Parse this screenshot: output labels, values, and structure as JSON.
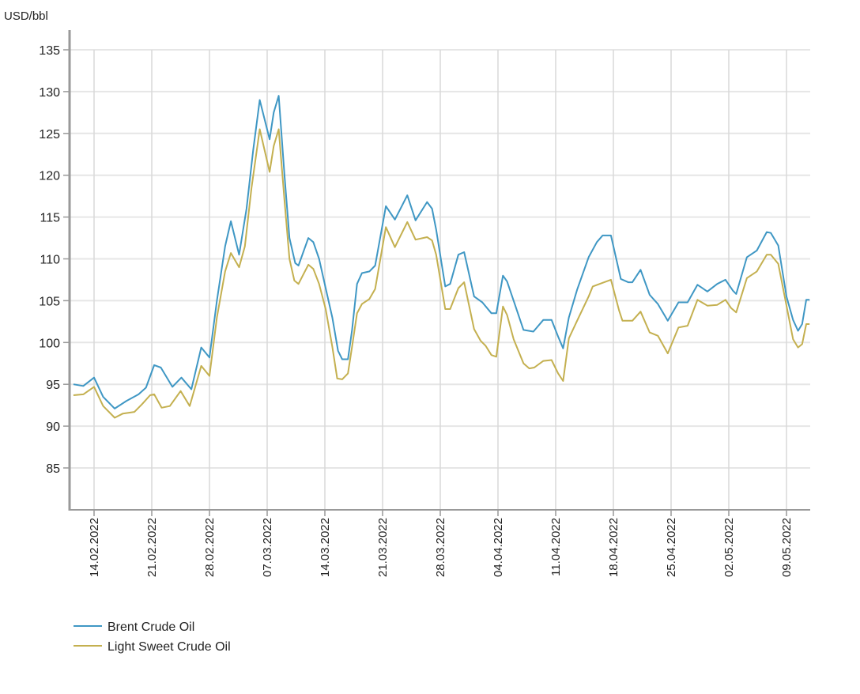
{
  "chart_data": {
    "type": "line",
    "ylabel": "USD/bbl",
    "ylim": [
      80,
      135
    ],
    "yticks": [
      85,
      90,
      95,
      100,
      105,
      110,
      115,
      120,
      125,
      130,
      135
    ],
    "x_unit": "days since 14.02.2022",
    "xlim": [
      -3,
      87
    ],
    "xticks": [
      {
        "day": 0,
        "label": "14.02.2022"
      },
      {
        "day": 7,
        "label": "21.02.2022"
      },
      {
        "day": 14,
        "label": "28.02.2022"
      },
      {
        "day": 21,
        "label": "07.03.2022"
      },
      {
        "day": 28,
        "label": "14.03.2022"
      },
      {
        "day": 35,
        "label": "21.03.2022"
      },
      {
        "day": 42,
        "label": "28.03.2022"
      },
      {
        "day": 49,
        "label": "04.04.2022"
      },
      {
        "day": 56,
        "label": "11.04.2022"
      },
      {
        "day": 63,
        "label": "18.04.2022"
      },
      {
        "day": 70,
        "label": "25.04.2022"
      },
      {
        "day": 77,
        "label": "02.05.2022"
      },
      {
        "day": 84,
        "label": "09.05.2022"
      }
    ],
    "grid": true,
    "legend_position": "bottom-left",
    "series": [
      {
        "name": "Brent Crude Oil",
        "color": "#3f97c4",
        "points": [
          [
            -2.5,
            95.0
          ],
          [
            -1.3,
            94.8
          ],
          [
            0,
            95.8
          ],
          [
            1.1,
            93.5
          ],
          [
            2.5,
            92.1
          ],
          [
            3.9,
            93.0
          ],
          [
            5.4,
            93.8
          ],
          [
            6.3,
            94.6
          ],
          [
            7.3,
            97.3
          ],
          [
            8.1,
            97.0
          ],
          [
            9.5,
            94.7
          ],
          [
            10.6,
            95.8
          ],
          [
            11.8,
            94.4
          ],
          [
            13.0,
            99.4
          ],
          [
            14.0,
            98.2
          ],
          [
            14.9,
            105
          ],
          [
            15.9,
            111.5
          ],
          [
            16.6,
            114.5
          ],
          [
            17.6,
            110.5
          ],
          [
            18.5,
            116
          ],
          [
            19.3,
            123
          ],
          [
            20.1,
            129
          ],
          [
            21.3,
            124.3
          ],
          [
            21.8,
            127.5
          ],
          [
            22.4,
            129.5
          ],
          [
            23.1,
            120
          ],
          [
            23.7,
            112.5
          ],
          [
            24.4,
            109.5
          ],
          [
            24.8,
            109.2
          ],
          [
            26.0,
            112.5
          ],
          [
            26.6,
            112
          ],
          [
            27.3,
            110
          ],
          [
            28.1,
            106.5
          ],
          [
            28.9,
            103
          ],
          [
            29.6,
            99
          ],
          [
            30.1,
            98
          ],
          [
            30.8,
            98
          ],
          [
            31.3,
            101.5
          ],
          [
            31.9,
            107
          ],
          [
            32.5,
            108.3
          ],
          [
            33.4,
            108.5
          ],
          [
            34.1,
            109.2
          ],
          [
            35.4,
            116.3
          ],
          [
            36.5,
            114.7
          ],
          [
            38.0,
            117.6
          ],
          [
            39.0,
            114.6
          ],
          [
            40.4,
            116.8
          ],
          [
            41.0,
            116
          ],
          [
            41.5,
            113.5
          ],
          [
            42.6,
            106.7
          ],
          [
            43.2,
            107
          ],
          [
            44.2,
            110.5
          ],
          [
            44.9,
            110.8
          ],
          [
            46.1,
            105.5
          ],
          [
            47.1,
            104.8
          ],
          [
            48.2,
            103.5
          ],
          [
            48.8,
            103.5
          ],
          [
            49.6,
            108
          ],
          [
            50.1,
            107.3
          ],
          [
            50.9,
            105
          ],
          [
            52.1,
            101.5
          ],
          [
            53.3,
            101.3
          ],
          [
            54.5,
            102.7
          ],
          [
            55.5,
            102.7
          ],
          [
            56.3,
            100.7
          ],
          [
            56.9,
            99.3
          ],
          [
            57.6,
            103
          ],
          [
            58.6,
            106.3
          ],
          [
            60.0,
            110.2
          ],
          [
            61.0,
            112
          ],
          [
            61.7,
            112.8
          ],
          [
            62.7,
            112.8
          ],
          [
            63.9,
            107.6
          ],
          [
            64.8,
            107.2
          ],
          [
            65.3,
            107.2
          ],
          [
            66.3,
            108.7
          ],
          [
            67.4,
            105.7
          ],
          [
            68.4,
            104.6
          ],
          [
            69.6,
            102.6
          ],
          [
            70.9,
            104.8
          ],
          [
            72.0,
            104.8
          ],
          [
            73.2,
            106.9
          ],
          [
            74.4,
            106.1
          ],
          [
            75.6,
            107
          ],
          [
            76.6,
            107.5
          ],
          [
            77.5,
            106.2
          ],
          [
            77.9,
            105.8
          ],
          [
            79.2,
            110.2
          ],
          [
            80.4,
            111
          ],
          [
            81.6,
            113.2
          ],
          [
            82.1,
            113.1
          ],
          [
            83.0,
            111.6
          ],
          [
            84.0,
            105.5
          ],
          [
            84.8,
            102.7
          ],
          [
            85.4,
            101.4
          ],
          [
            85.9,
            102.2
          ],
          [
            86.4,
            105.1
          ],
          [
            86.8,
            105.1
          ]
        ]
      },
      {
        "name": "Light Sweet Crude Oil",
        "color": "#c4b050",
        "points": [
          [
            -2.5,
            93.7
          ],
          [
            -1.3,
            93.8
          ],
          [
            0,
            94.7
          ],
          [
            1.1,
            92.4
          ],
          [
            2.5,
            91.0
          ],
          [
            3.5,
            91.5
          ],
          [
            4.9,
            91.7
          ],
          [
            5.8,
            92.6
          ],
          [
            6.8,
            93.7
          ],
          [
            7.3,
            93.8
          ],
          [
            8.2,
            92.2
          ],
          [
            9.2,
            92.4
          ],
          [
            10.5,
            94.2
          ],
          [
            11.6,
            92.4
          ],
          [
            13.0,
            97.2
          ],
          [
            14.0,
            96.0
          ],
          [
            14.9,
            103
          ],
          [
            15.9,
            108.5
          ],
          [
            16.6,
            110.7
          ],
          [
            17.6,
            109
          ],
          [
            18.3,
            111.5
          ],
          [
            19.1,
            118.5
          ],
          [
            20.1,
            125.5
          ],
          [
            21.3,
            120.4
          ],
          [
            21.8,
            123.5
          ],
          [
            22.4,
            125.5
          ],
          [
            23.1,
            117
          ],
          [
            23.7,
            110
          ],
          [
            24.3,
            107.4
          ],
          [
            24.8,
            107
          ],
          [
            26.0,
            109.3
          ],
          [
            26.6,
            108.8
          ],
          [
            27.3,
            107
          ],
          [
            28.1,
            104
          ],
          [
            28.9,
            99.5
          ],
          [
            29.5,
            95.7
          ],
          [
            30.1,
            95.6
          ],
          [
            30.8,
            96.3
          ],
          [
            31.3,
            99.5
          ],
          [
            31.9,
            103.5
          ],
          [
            32.5,
            104.6
          ],
          [
            33.4,
            105.2
          ],
          [
            34.1,
            106.4
          ],
          [
            35.4,
            113.8
          ],
          [
            36.5,
            111.4
          ],
          [
            38.0,
            114.4
          ],
          [
            39.0,
            112.3
          ],
          [
            40.4,
            112.6
          ],
          [
            41.0,
            112.2
          ],
          [
            41.5,
            110.5
          ],
          [
            42.6,
            104
          ],
          [
            43.2,
            104
          ],
          [
            44.2,
            106.5
          ],
          [
            44.9,
            107.2
          ],
          [
            46.1,
            101.6
          ],
          [
            46.9,
            100.2
          ],
          [
            47.5,
            99.6
          ],
          [
            48.2,
            98.5
          ],
          [
            48.8,
            98.3
          ],
          [
            49.6,
            104.3
          ],
          [
            50.1,
            103.3
          ],
          [
            50.9,
            100.4
          ],
          [
            52.1,
            97.5
          ],
          [
            52.8,
            96.9
          ],
          [
            53.4,
            97.0
          ],
          [
            54.5,
            97.8
          ],
          [
            55.5,
            97.9
          ],
          [
            56.3,
            96.3
          ],
          [
            56.9,
            95.4
          ],
          [
            57.6,
            100.5
          ],
          [
            58.6,
            102.6
          ],
          [
            60.0,
            105.5
          ],
          [
            60.5,
            106.7
          ],
          [
            62.7,
            107.5
          ],
          [
            63.7,
            103.8
          ],
          [
            64.1,
            102.6
          ],
          [
            65.3,
            102.6
          ],
          [
            66.3,
            103.7
          ],
          [
            67.4,
            101.2
          ],
          [
            68.4,
            100.8
          ],
          [
            69.6,
            98.7
          ],
          [
            70.9,
            101.8
          ],
          [
            72.0,
            102.0
          ],
          [
            73.2,
            105.1
          ],
          [
            74.4,
            104.4
          ],
          [
            75.6,
            104.5
          ],
          [
            76.6,
            105.1
          ],
          [
            77.3,
            104.1
          ],
          [
            77.9,
            103.6
          ],
          [
            79.2,
            107.7
          ],
          [
            80.4,
            108.5
          ],
          [
            81.6,
            110.5
          ],
          [
            82.1,
            110.5
          ],
          [
            83.0,
            109.4
          ],
          [
            84.0,
            104.4
          ],
          [
            84.8,
            100.4
          ],
          [
            85.4,
            99.4
          ],
          [
            85.9,
            99.8
          ],
          [
            86.4,
            102.2
          ],
          [
            86.8,
            102.2
          ]
        ]
      }
    ]
  }
}
